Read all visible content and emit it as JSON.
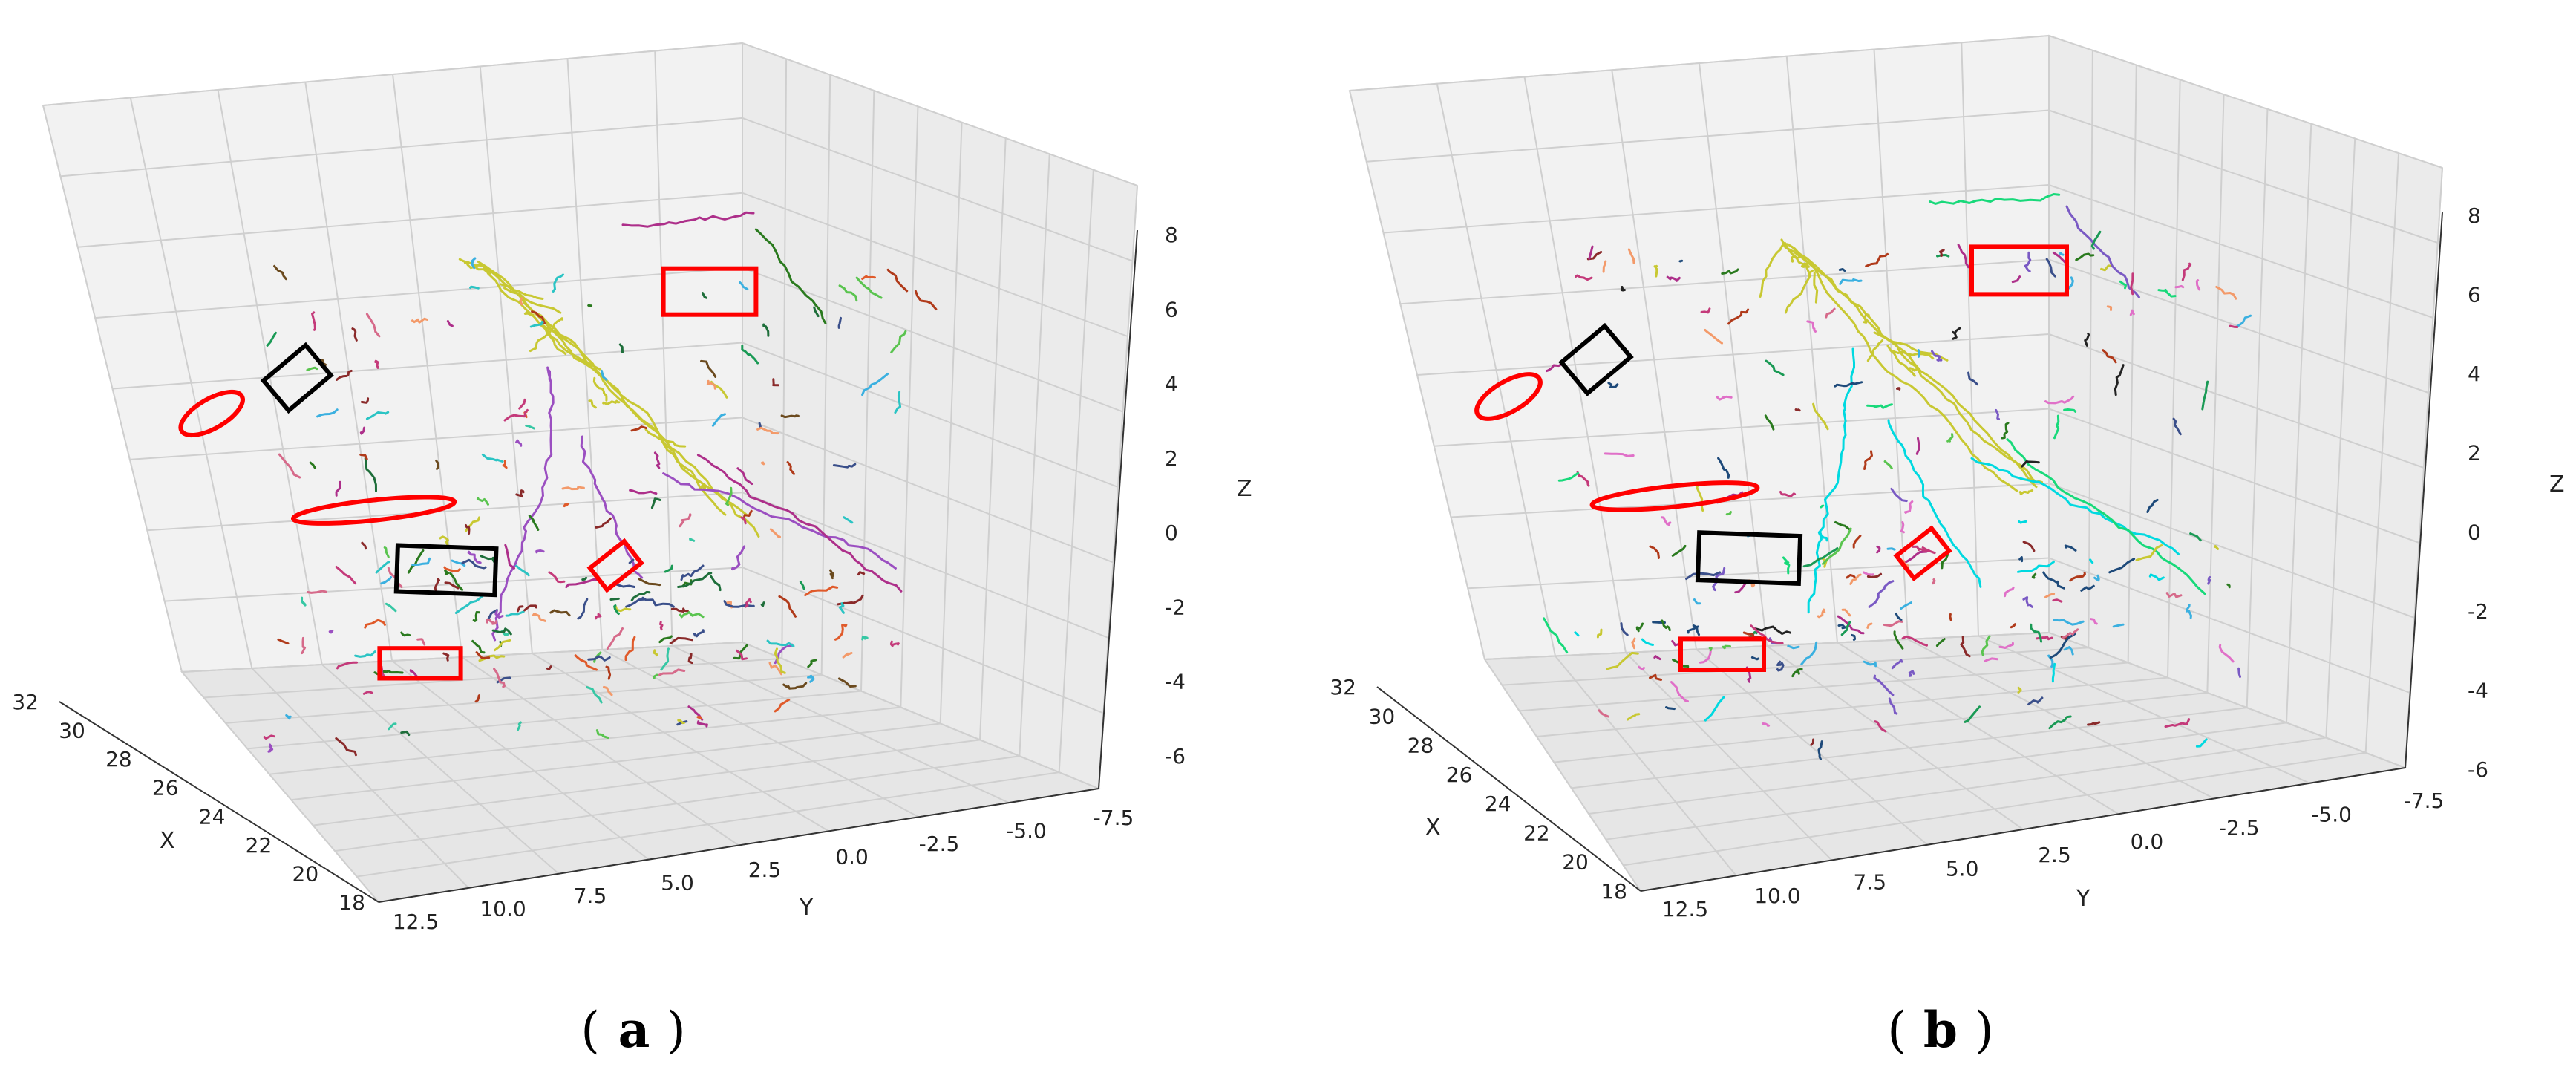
{
  "chart_data": [
    {
      "type": "scatter",
      "subtype": "3d-line-segments",
      "panel_label": "a",
      "axes": {
        "x": {
          "label": "X",
          "ticks": [
            "18",
            "20",
            "22",
            "24",
            "26",
            "28",
            "30",
            "32"
          ],
          "range": [
            17,
            33
          ]
        },
        "y": {
          "label": "Y",
          "ticks": [
            "12.5",
            "10.0",
            "7.5",
            "5.0",
            "2.5",
            "0.0",
            "-2.5",
            "-5.0",
            "-7.5"
          ],
          "range": [
            13.5,
            -8.5
          ]
        },
        "z": {
          "label": "Z",
          "ticks": [
            "-6",
            "-4",
            "-2",
            "0",
            "2",
            "4",
            "6",
            "8"
          ],
          "range": [
            -7,
            9
          ]
        }
      },
      "grid": true,
      "palette": [
        "#c8c832",
        "#9b4fc1",
        "#ad2f8a",
        "#2a7a1e",
        "#2bc4c4",
        "#1e6e3a",
        "#d66a8a",
        "#6b4a1e",
        "#e05a2a",
        "#3a4f8a",
        "#f39a6a",
        "#36c7a4",
        "#c43a7a",
        "#8a2a2a",
        "#5ac44f",
        "#3bb0e0",
        "#1a9a55",
        "#b03a1a"
      ],
      "highlights": [
        {
          "shape": "rect",
          "color": "#ff0000"
        },
        {
          "shape": "rect",
          "color": "#000000"
        },
        {
          "shape": "ellipse",
          "color": "#ff0000"
        },
        {
          "shape": "ellipse",
          "color": "#ff0000"
        },
        {
          "shape": "rect",
          "color": "#000000"
        },
        {
          "shape": "rect",
          "color": "#ff0000"
        },
        {
          "shape": "rect",
          "color": "#ff0000"
        }
      ]
    },
    {
      "type": "scatter",
      "subtype": "3d-line-segments",
      "panel_label": "b",
      "axes": {
        "x": {
          "label": "X",
          "ticks": [
            "18",
            "20",
            "22",
            "24",
            "26",
            "28",
            "30",
            "32"
          ],
          "range": [
            17,
            33
          ]
        },
        "y": {
          "label": "Y",
          "ticks": [
            "12.5",
            "10.0",
            "7.5",
            "5.0",
            "2.5",
            "0.0",
            "-2.5",
            "-5.0",
            "-7.5"
          ],
          "range": [
            13.5,
            -8.5
          ]
        },
        "z": {
          "label": "Z",
          "ticks": [
            "-6",
            "-4",
            "-2",
            "0",
            "2",
            "4",
            "6",
            "8"
          ],
          "range": [
            -7,
            9
          ]
        }
      },
      "grid": true,
      "palette": [
        "#c8c832",
        "#00d9e0",
        "#18d97a",
        "#7a5ac4",
        "#2a7a1e",
        "#1e4a7a",
        "#d66a8a",
        "#ad2f8a",
        "#3a4f8a",
        "#f39a6a",
        "#e070c8",
        "#5ac44f",
        "#8a2a2a",
        "#3bb0e0",
        "#1a9a55",
        "#c43a7a",
        "#222222",
        "#b03a1a"
      ],
      "highlights": [
        {
          "shape": "rect",
          "color": "#ff0000"
        },
        {
          "shape": "rect",
          "color": "#000000"
        },
        {
          "shape": "ellipse",
          "color": "#ff0000"
        },
        {
          "shape": "ellipse",
          "color": "#ff0000"
        },
        {
          "shape": "rect",
          "color": "#000000"
        },
        {
          "shape": "rect",
          "color": "#ff0000"
        },
        {
          "shape": "rect",
          "color": "#ff0000"
        }
      ]
    }
  ],
  "panel_labels": {
    "a": "a",
    "b": "b"
  }
}
